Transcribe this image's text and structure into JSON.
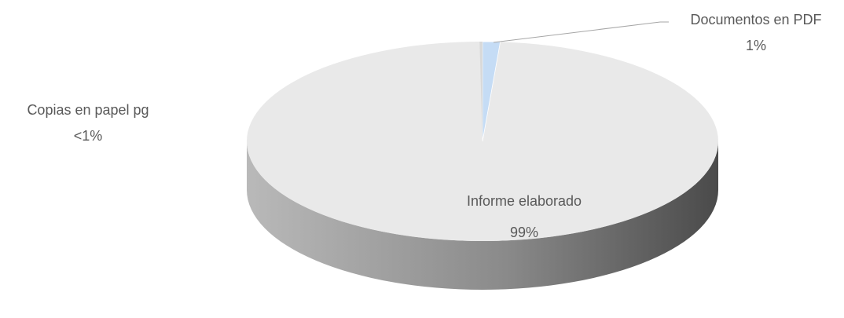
{
  "chart_data": {
    "type": "pie",
    "style": "3d",
    "title": "",
    "slices": [
      {
        "name": "Informe elaborado",
        "value": 98.6,
        "label": "Informe elaborado",
        "percent_label": "99%",
        "color": "#e9e9e9"
      },
      {
        "name": "Documentos en PDF",
        "value": 1.2,
        "label": "Documentos en PDF",
        "percent_label": "1%",
        "color": "#c5dcf5"
      },
      {
        "name": "Copias en papel pg",
        "value": 0.2,
        "label": "Copias en papel pg",
        "percent_label": "<1%",
        "color": "#d9d9d9"
      }
    ],
    "colors": {
      "side_dark": "#4f4f4f",
      "side_light": "#b5b5b5",
      "label_text": "#595959",
      "leader_line": "#a6a6a6"
    }
  }
}
